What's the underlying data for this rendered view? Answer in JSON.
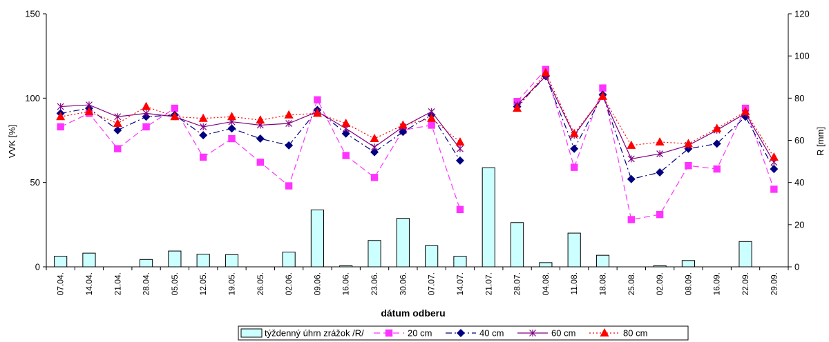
{
  "chart_data": {
    "type": "bar+line",
    "xlabel": "dátum odberu",
    "ylabel_left": "VVK  [%]",
    "ylabel_right": "R [mm]",
    "ylim_left": [
      0,
      150
    ],
    "ylim_right": [
      0,
      120
    ],
    "yticks_left": [
      "0",
      "50",
      "100",
      "150"
    ],
    "yticks_right": [
      "0",
      "20",
      "40",
      "60",
      "80",
      "100",
      "120"
    ],
    "categories": [
      "07.04.",
      "14.04.",
      "21.04.",
      "28.04.",
      "05.05.",
      "12.05.",
      "19.05.",
      "26.05.",
      "02.06.",
      "09.06.",
      "16.06.",
      "23.06.",
      "30.06.",
      "07.07.",
      "14.07.",
      "21.07.",
      "28.07.",
      "04.08.",
      "11.08.",
      "18.08.",
      "25.08.",
      "02.09.",
      "08.09.",
      "16.09.",
      "22.09.",
      "29.09."
    ],
    "bars": {
      "name": "týždenný úhrn zrážok /R/",
      "axis": "right",
      "color": "#ccffff",
      "values": [
        5,
        6.5,
        0,
        3.5,
        7.5,
        6,
        5.8,
        0,
        7,
        27,
        0.5,
        12.5,
        23,
        10,
        5,
        47,
        21,
        2,
        16,
        5.5,
        0,
        0.5,
        3,
        0,
        12,
        0
      ]
    },
    "series": [
      {
        "name": "20 cm",
        "color": "#ff33ff",
        "dash": "9,5",
        "marker": "square",
        "values": [
          83,
          91,
          70,
          83,
          94,
          65,
          76,
          62,
          48,
          99,
          66,
          53,
          81,
          84,
          34,
          null,
          98,
          117,
          59,
          106,
          28,
          31,
          60,
          58,
          94,
          46
        ]
      },
      {
        "name": "40 cm",
        "color": "#000080",
        "dash": "9,4,2,4",
        "marker": "diamond",
        "values": [
          91,
          94,
          81,
          89,
          90,
          78,
          82,
          76,
          72,
          93,
          79,
          68,
          80,
          90,
          63,
          null,
          95,
          113,
          70,
          102,
          52,
          56,
          70,
          73,
          89,
          58
        ]
      },
      {
        "name": "60 cm",
        "color": "#800080",
        "dash": "",
        "marker": "star",
        "values": [
          95,
          96,
          89,
          91,
          89,
          83,
          86,
          84,
          85,
          92,
          82,
          71,
          83,
          92,
          70,
          null,
          96,
          113,
          78,
          101,
          64,
          67,
          72,
          81,
          91,
          62
        ]
      },
      {
        "name": "80 cm",
        "color": "#ff0000",
        "dash": "2,3",
        "marker": "triangle",
        "values": [
          89,
          92,
          85,
          95,
          89,
          88,
          89,
          87,
          90,
          91,
          85,
          76,
          84,
          88,
          74,
          null,
          94,
          115,
          79,
          101,
          72,
          74,
          73,
          82,
          92,
          65
        ]
      }
    ]
  }
}
